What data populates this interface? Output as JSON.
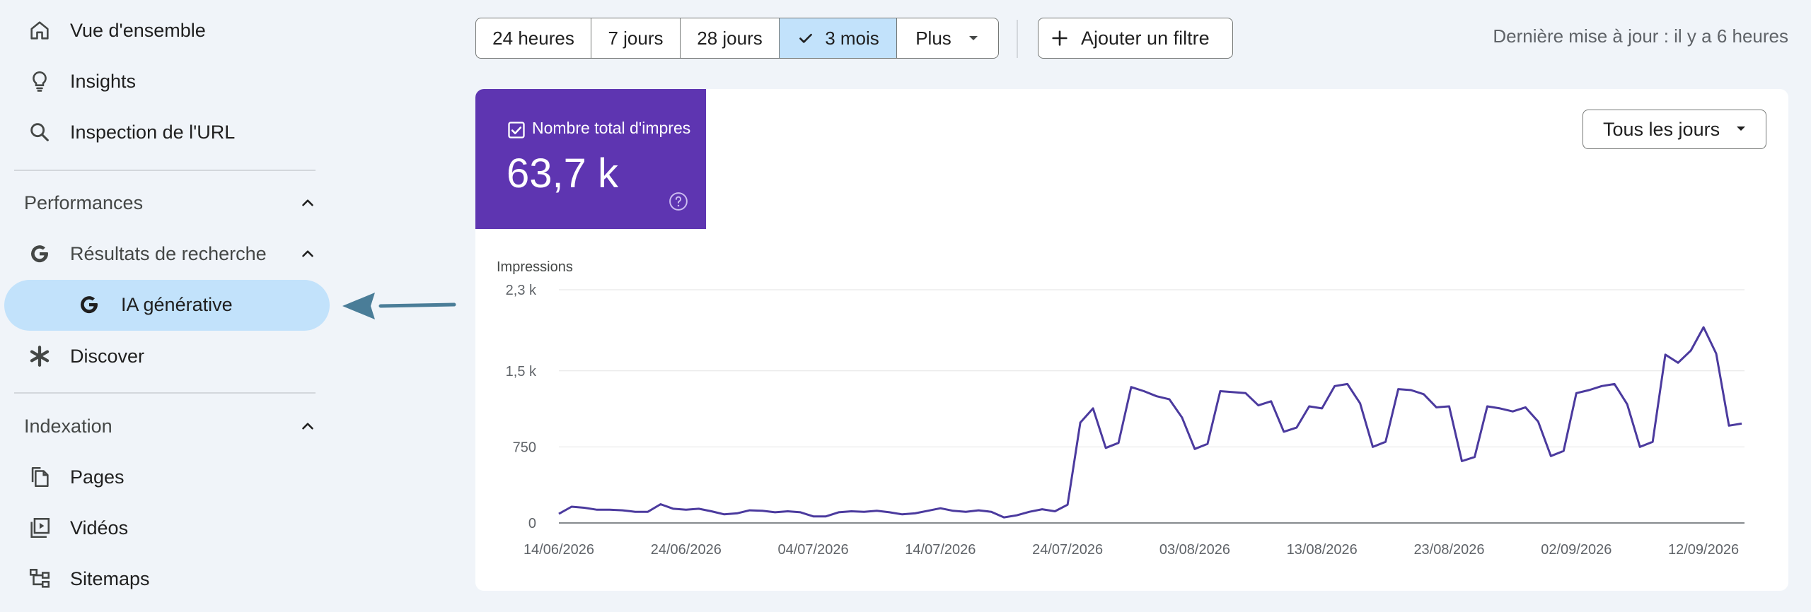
{
  "sidebar": {
    "items": {
      "overview": "Vue d'ensemble",
      "insights": "Insights",
      "url_inspection": "Inspection de l'URL",
      "performance_section": "Performances",
      "search_results": "Résultats de recherche",
      "generative_ai": "IA générative",
      "discover": "Discover",
      "indexing_section": "Indexation",
      "pages": "Pages",
      "videos": "Vidéos",
      "sitemaps": "Sitemaps"
    }
  },
  "toolbar": {
    "ranges": [
      "24 heures",
      "7 jours",
      "28 jours",
      "3 mois",
      "Plus"
    ],
    "selected_range": "3 mois",
    "add_filter": "Ajouter un filtre",
    "last_updated": "Dernière mise à jour : il y a 6 heures"
  },
  "metric": {
    "label": "Nombre total d'impressions",
    "value": "63,7 k"
  },
  "days_select": {
    "value": "Tous les jours"
  },
  "colors": {
    "accent": "#5e35b1",
    "selected": "#c2e2fb",
    "line": "#4b3a9e",
    "arrow": "#4a7d98"
  },
  "chart_data": {
    "type": "line",
    "ylabel": "Impressions",
    "ylim": [
      0,
      2300
    ],
    "yticks": [
      0,
      750,
      1500,
      2300
    ],
    "ytick_labels": [
      "0",
      "750",
      "1,5 k",
      "2,3 k"
    ],
    "xtick_labels": [
      "14/06/2026",
      "24/06/2026",
      "04/07/2026",
      "14/07/2026",
      "24/07/2026",
      "03/08/2026",
      "13/08/2026",
      "23/08/2026",
      "02/09/2026",
      "12/09/2026"
    ],
    "x_start": "14/06/2026",
    "x_end": "13/09/2026",
    "grid": true,
    "series": [
      {
        "name": "Impressions",
        "values": [
          90,
          160,
          150,
          130,
          130,
          125,
          110,
          110,
          185,
          140,
          130,
          140,
          115,
          85,
          95,
          125,
          120,
          105,
          115,
          105,
          65,
          65,
          105,
          115,
          110,
          120,
          105,
          85,
          95,
          120,
          145,
          120,
          110,
          125,
          110,
          55,
          75,
          110,
          135,
          115,
          180,
          990,
          1130,
          740,
          790,
          1340,
          1300,
          1250,
          1220,
          1040,
          730,
          780,
          1300,
          1290,
          1280,
          1160,
          1200,
          900,
          940,
          1150,
          1130,
          1350,
          1370,
          1180,
          750,
          800,
          1320,
          1310,
          1270,
          1140,
          1150,
          610,
          650,
          1150,
          1130,
          1100,
          1140,
          1000,
          660,
          710,
          1280,
          1310,
          1350,
          1370,
          1170,
          750,
          800,
          1660,
          1580,
          1700,
          1930,
          1670,
          960,
          980
        ]
      }
    ]
  }
}
